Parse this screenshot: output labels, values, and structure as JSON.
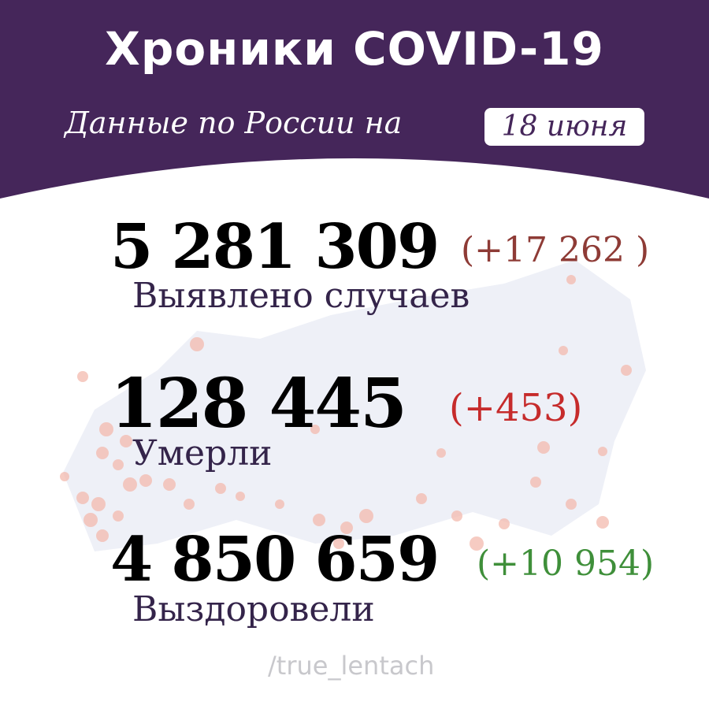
{
  "header": {
    "title": "Хроники COVID-19",
    "subtitle": "Данные по России на",
    "date": "18 июня"
  },
  "stats": [
    {
      "value": "5 281 309",
      "delta": "(+17 262 )",
      "label": "Выявлено случаев",
      "delta_color": "#8e3b36"
    },
    {
      "value": "128 445",
      "delta": "(+453)",
      "label": "Умерли",
      "delta_color": "#c62b2b"
    },
    {
      "value": "4 850 659",
      "delta": "(+10 954)",
      "label": "Выздоровели",
      "delta_color": "#3f8f3a"
    }
  ],
  "footer": "/true_lentach",
  "colors": {
    "header": "#45265a",
    "map": "#eef0f7",
    "dots": "#f3b9ad"
  }
}
